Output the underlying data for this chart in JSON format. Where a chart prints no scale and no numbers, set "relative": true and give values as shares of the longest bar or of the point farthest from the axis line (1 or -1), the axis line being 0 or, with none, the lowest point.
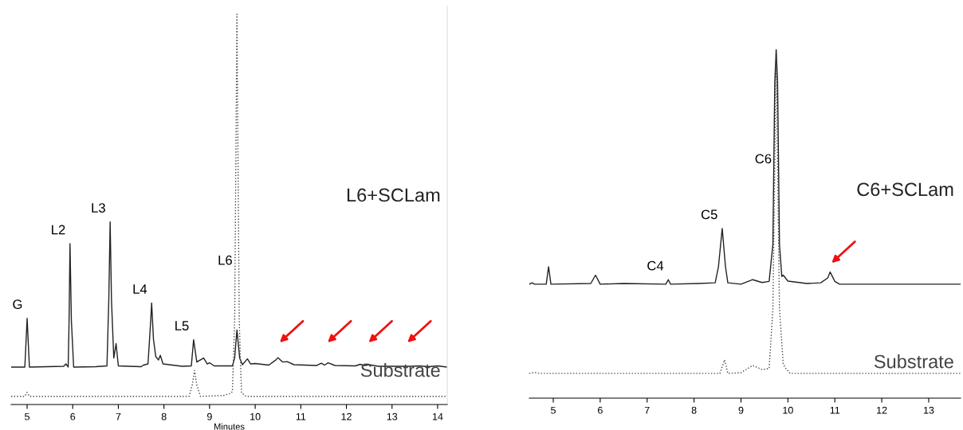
{
  "chart_data": [
    {
      "type": "line",
      "relative": true,
      "xlabel": "Minutes",
      "xlim": [
        4.65,
        14.21
      ],
      "xticks": [
        5,
        6,
        7,
        8,
        9,
        10,
        11,
        12,
        13,
        14
      ],
      "grid": false,
      "legend": false,
      "marker": "none",
      "series": [
        {
          "name": "L6+SCLam",
          "color": "#222222",
          "line_style": "solid",
          "x": [
            4.65,
            4.95,
            5.0,
            5.05,
            5.8,
            5.85,
            5.9,
            5.92,
            5.94,
            5.97,
            6.02,
            6.5,
            6.75,
            6.79,
            6.82,
            6.85,
            6.9,
            6.95,
            7.0,
            7.5,
            7.55,
            7.65,
            7.71,
            7.73,
            7.77,
            7.82,
            7.88,
            7.92,
            7.98,
            8.4,
            8.6,
            8.65,
            8.72,
            8.87,
            8.95,
            9.0,
            9.1,
            9.5,
            9.55,
            9.6,
            9.66,
            9.72,
            9.83,
            9.9,
            10.0,
            10.3,
            10.45,
            10.5,
            10.6,
            10.7,
            10.85,
            11.35,
            11.45,
            11.52,
            11.6,
            11.75,
            12.2,
            12.3,
            12.4,
            12.5,
            12.7,
            13.4,
            13.6,
            13.8,
            14.0,
            14.21
          ],
          "values": [
            0.096,
            0.096,
            0.221,
            0.096,
            0.098,
            0.104,
            0.096,
            0.216,
            0.412,
            0.216,
            0.096,
            0.097,
            0.099,
            0.265,
            0.468,
            0.265,
            0.119,
            0.156,
            0.099,
            0.097,
            0.101,
            0.104,
            0.216,
            0.26,
            0.167,
            0.123,
            0.114,
            0.126,
            0.104,
            0.098,
            0.099,
            0.166,
            0.109,
            0.119,
            0.104,
            0.107,
            0.099,
            0.099,
            0.119,
            0.191,
            0.119,
            0.102,
            0.117,
            0.104,
            0.105,
            0.101,
            0.114,
            0.12,
            0.109,
            0.11,
            0.102,
            0.1,
            0.106,
            0.101,
            0.107,
            0.1,
            0.099,
            0.103,
            0.1,
            0.102,
            0.098,
            0.098,
            0.099,
            0.097,
            0.099,
            0.096
          ]
        },
        {
          "name": "Substrate",
          "color": "#444444",
          "line_style": "dotted",
          "x": [
            4.65,
            4.95,
            5.0,
            5.05,
            8.55,
            8.62,
            8.67,
            8.72,
            8.8,
            9.3,
            9.45,
            9.5,
            9.55,
            9.6,
            9.65,
            9.7,
            9.8,
            14.21
          ],
          "values": [
            0.021,
            0.021,
            0.031,
            0.021,
            0.021,
            0.05,
            0.087,
            0.05,
            0.021,
            0.023,
            0.028,
            0.033,
            0.216,
            1.0,
            0.216,
            0.03,
            0.021,
            0.021
          ]
        }
      ],
      "annotations": [
        {
          "text": "G",
          "x": 5.0,
          "y": 0.221
        },
        {
          "text": "L2",
          "x": 5.94,
          "y": 0.412
        },
        {
          "text": "L3",
          "x": 6.82,
          "y": 0.468
        },
        {
          "text": "L4",
          "x": 7.73,
          "y": 0.26
        },
        {
          "text": "L5",
          "x": 8.65,
          "y": 0.166
        },
        {
          "text": "L6",
          "x": 9.6,
          "y": 0.334
        }
      ]
    },
    {
      "type": "line",
      "relative": true,
      "xlim": [
        4.49,
        13.68
      ],
      "xticks": [
        5,
        6,
        7,
        8,
        9,
        10,
        11,
        12,
        13
      ],
      "grid": false,
      "legend": false,
      "marker": "none",
      "series": [
        {
          "name": "C6+SCLam",
          "color": "#222222",
          "line_style": "solid",
          "x": [
            4.49,
            4.55,
            4.6,
            4.85,
            4.9,
            4.95,
            5.8,
            5.9,
            6.0,
            6.5,
            7.4,
            7.45,
            7.5,
            8.1,
            8.45,
            8.52,
            8.6,
            8.67,
            8.72,
            9.0,
            9.25,
            9.45,
            9.6,
            9.68,
            9.72,
            9.75,
            9.78,
            9.82,
            9.87,
            9.9,
            10.0,
            10.4,
            10.7,
            10.85,
            10.9,
            11.0,
            11.1,
            13.68
          ],
          "values": [
            0.327,
            0.331,
            0.327,
            0.327,
            0.377,
            0.327,
            0.329,
            0.353,
            0.327,
            0.329,
            0.327,
            0.34,
            0.327,
            0.329,
            0.331,
            0.377,
            0.487,
            0.377,
            0.331,
            0.327,
            0.34,
            0.332,
            0.335,
            0.442,
            0.907,
            1.0,
            0.907,
            0.442,
            0.349,
            0.353,
            0.336,
            0.329,
            0.331,
            0.345,
            0.362,
            0.335,
            0.327,
            0.327
          ]
        },
        {
          "name": "Substrate",
          "color": "#444444",
          "line_style": "dotted",
          "x": [
            4.49,
            4.6,
            4.7,
            8.55,
            8.65,
            8.72,
            9.0,
            9.25,
            9.45,
            9.6,
            9.68,
            9.75,
            9.82,
            9.9,
            9.95,
            10.05,
            13.68
          ],
          "values": [
            0.071,
            0.074,
            0.071,
            0.071,
            0.11,
            0.071,
            0.073,
            0.094,
            0.082,
            0.085,
            0.257,
            0.981,
            0.257,
            0.098,
            0.086,
            0.071,
            0.071
          ]
        }
      ],
      "annotations": [
        {
          "text": "C4",
          "x": 7.45,
          "y": 0.34
        },
        {
          "text": "C5",
          "x": 8.6,
          "y": 0.487
        },
        {
          "text": "C6",
          "x": 9.75,
          "y": 0.647
        }
      ]
    }
  ]
}
